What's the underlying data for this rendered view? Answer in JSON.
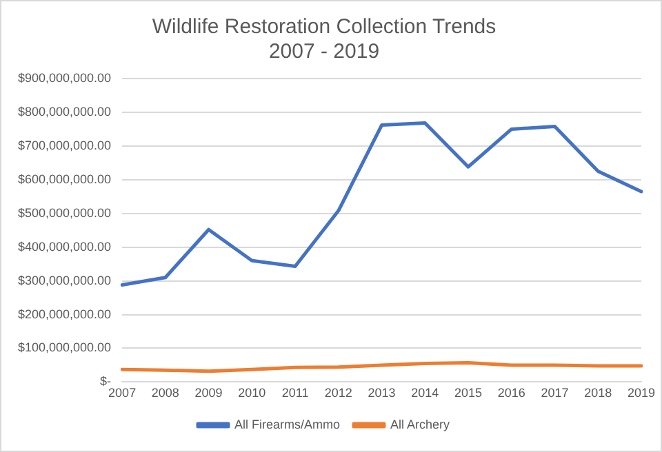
{
  "chart_data": {
    "type": "line",
    "title": "Wildlife Restoration Collection Trends\n2007 - 2019",
    "categories": [
      "2007",
      "2008",
      "2009",
      "2010",
      "2011",
      "2012",
      "2013",
      "2014",
      "2015",
      "2016",
      "2017",
      "2018",
      "2019"
    ],
    "series": [
      {
        "name": "All Firearms/Ammo",
        "color": "#4472c4",
        "values": [
          288000000,
          310000000,
          452000000,
          360000000,
          343000000,
          508000000,
          762000000,
          768000000,
          638000000,
          750000000,
          758000000,
          625000000,
          565000000
        ]
      },
      {
        "name": "All Archery",
        "color": "#ed7d31",
        "values": [
          37000000,
          35000000,
          32000000,
          37000000,
          43000000,
          44000000,
          50000000,
          55000000,
          57000000,
          50000000,
          50000000,
          48000000,
          48000000
        ]
      }
    ],
    "ylim": [
      0,
      900000000
    ],
    "yticks": [
      {
        "value": 0,
        "label": "$-"
      },
      {
        "value": 100000000,
        "label": "$100,000,000.00"
      },
      {
        "value": 200000000,
        "label": "$200,000,000.00"
      },
      {
        "value": 300000000,
        "label": "$300,000,000.00"
      },
      {
        "value": 400000000,
        "label": "$400,000,000.00"
      },
      {
        "value": 500000000,
        "label": "$500,000,000.00"
      },
      {
        "value": 600000000,
        "label": "$600,000,000.00"
      },
      {
        "value": 700000000,
        "label": "$700,000,000.00"
      },
      {
        "value": 800000000,
        "label": "$800,000,000.00"
      },
      {
        "value": 900000000,
        "label": "$900,000,000.00"
      }
    ],
    "grid": "y",
    "legend": "bottom",
    "marker": "none",
    "line_style": "solid"
  }
}
